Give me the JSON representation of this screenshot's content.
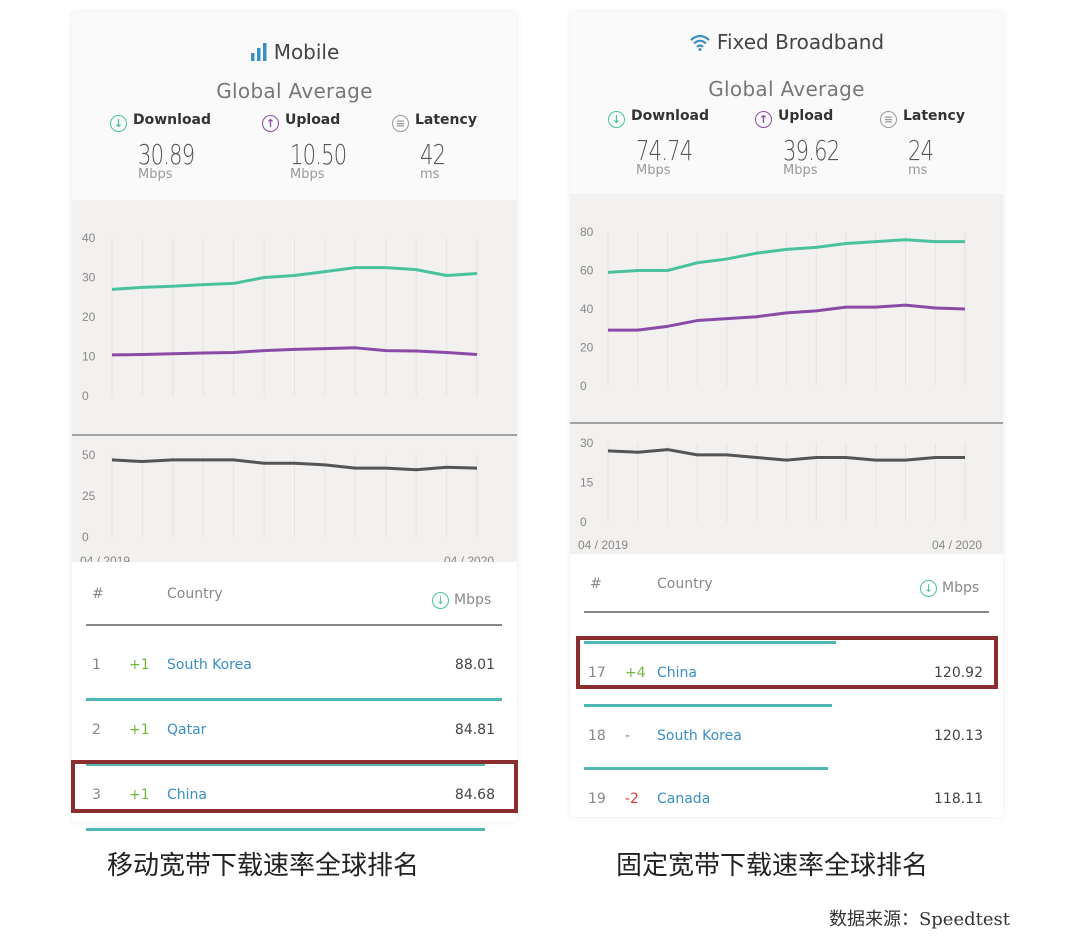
{
  "colors": {
    "download": "#4bc29e",
    "upload": "#8a4ba8",
    "latency": "#555555",
    "country": "#3a8fc4",
    "highlight": "#8c2d2f",
    "change_up": "#72b83f",
    "change_down": "#e03a3a"
  },
  "mobile": {
    "title": "Mobile",
    "icon": "signal-bars-icon",
    "subtitle": "Global Average",
    "metrics": [
      {
        "label": "Download",
        "value": "30.89",
        "unit": "Mbps",
        "icon": "download-arrow-icon"
      },
      {
        "label": "Upload",
        "value": "10.50",
        "unit": "Mbps",
        "icon": "upload-arrow-icon"
      },
      {
        "label": "Latency",
        "value": "42",
        "unit": "ms",
        "icon": "latency-icon"
      }
    ],
    "x_start": "04 / 2019",
    "x_end": "04 / 2020",
    "table": {
      "col_rank": "#",
      "col_country": "Country",
      "col_value": "Mbps",
      "rows": [
        {
          "rank": "1",
          "change": "+1",
          "country": "South Korea",
          "value": "88.01",
          "bar": 1.0
        },
        {
          "rank": "2",
          "change": "+1",
          "country": "Qatar",
          "value": "84.81",
          "bar": 0.96
        },
        {
          "rank": "3",
          "change": "+1",
          "country": "China",
          "value": "84.68",
          "bar": 0.96
        }
      ]
    },
    "caption": "移动宽带下载速率全球排名"
  },
  "fixed": {
    "title": "Fixed Broadband",
    "icon": "wifi-icon",
    "subtitle": "Global Average",
    "metrics": [
      {
        "label": "Download",
        "value": "74.74",
        "unit": "Mbps",
        "icon": "download-arrow-icon"
      },
      {
        "label": "Upload",
        "value": "39.62",
        "unit": "Mbps",
        "icon": "upload-arrow-icon"
      },
      {
        "label": "Latency",
        "value": "24",
        "unit": "ms",
        "icon": "latency-icon"
      }
    ],
    "x_start": "04 / 2019",
    "x_end": "04 / 2020",
    "table": {
      "col_rank": "#",
      "col_country": "Country",
      "col_value": "Mbps",
      "rows": [
        {
          "rank": "17",
          "change": "+4",
          "country": "China",
          "value": "120.92",
          "bar": 0.63
        },
        {
          "rank": "18",
          "change": "-",
          "country": "South Korea",
          "value": "120.13",
          "bar": 0.62
        },
        {
          "rank": "19",
          "change": "-2",
          "country": "Canada",
          "value": "118.11",
          "bar": 0.61
        }
      ]
    },
    "caption": "固定宽带下载速率全球排名"
  },
  "source": "数据来源：Speedtest",
  "chart_data": [
    {
      "type": "line",
      "x": [
        "04/2019",
        "05/2019",
        "06/2019",
        "07/2019",
        "08/2019",
        "09/2019",
        "10/2019",
        "11/2019",
        "12/2019",
        "01/2020",
        "02/2020",
        "03/2020",
        "04/2020"
      ],
      "ylim": [
        0,
        40
      ],
      "yticks": [
        0,
        10,
        20,
        30,
        40
      ],
      "series": [
        {
          "color": "#4bc29e",
          "values": [
            27,
            27.5,
            27.8,
            28.2,
            28.5,
            30,
            30.5,
            31.5,
            32.5,
            32.5,
            32,
            30.5,
            31
          ]
        },
        {
          "color": "#8a4ba8",
          "values": [
            10.4,
            10.5,
            10.7,
            10.9,
            11.0,
            11.5,
            11.8,
            12.0,
            12.2,
            11.5,
            11.4,
            11.0,
            10.5
          ]
        }
      ]
    },
    {
      "type": "line",
      "x": [
        "04/2019",
        "05/2019",
        "06/2019",
        "07/2019",
        "08/2019",
        "09/2019",
        "10/2019",
        "11/2019",
        "12/2019",
        "01/2020",
        "02/2020",
        "03/2020",
        "04/2020"
      ],
      "ylim": [
        0,
        50
      ],
      "yticks": [
        0,
        25,
        50
      ],
      "series": [
        {
          "color": "#555555",
          "values": [
            47,
            46,
            47,
            47,
            47,
            45,
            45,
            44,
            42,
            42,
            41,
            42.5,
            42
          ]
        }
      ]
    },
    {
      "type": "line",
      "x": [
        "04/2019",
        "05/2019",
        "06/2019",
        "07/2019",
        "08/2019",
        "09/2019",
        "10/2019",
        "11/2019",
        "12/2019",
        "01/2020",
        "02/2020",
        "03/2020",
        "04/2020"
      ],
      "ylim": [
        0,
        80
      ],
      "yticks": [
        0,
        20,
        40,
        60,
        80
      ],
      "series": [
        {
          "color": "#4bc29e",
          "values": [
            59,
            60,
            60,
            64,
            66,
            69,
            71,
            72,
            74,
            75,
            76,
            75,
            75
          ]
        },
        {
          "color": "#8a4ba8",
          "values": [
            29,
            29,
            31,
            34,
            35,
            36,
            38,
            39,
            41,
            41,
            42,
            40.5,
            40
          ]
        }
      ]
    },
    {
      "type": "line",
      "x": [
        "04/2019",
        "05/2019",
        "06/2019",
        "07/2019",
        "08/2019",
        "09/2019",
        "10/2019",
        "11/2019",
        "12/2019",
        "01/2020",
        "02/2020",
        "03/2020",
        "04/2020"
      ],
      "ylim": [
        0,
        30
      ],
      "yticks": [
        0,
        15,
        30
      ],
      "series": [
        {
          "color": "#555555",
          "values": [
            27,
            26.5,
            27.5,
            25.5,
            25.5,
            24.5,
            23.5,
            24.5,
            24.5,
            23.5,
            23.5,
            24.5,
            24.5
          ]
        }
      ]
    }
  ]
}
